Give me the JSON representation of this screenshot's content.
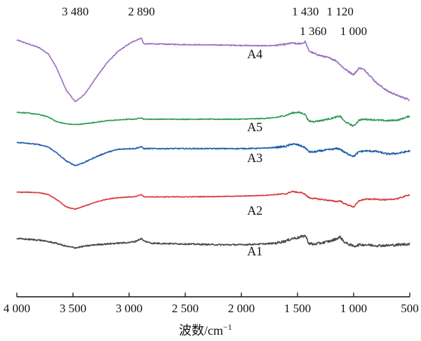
{
  "chart_data": {
    "type": "line",
    "xlabel_main": "波数/cm",
    "xlabel_sup": "−1",
    "xlim": [
      4000,
      500
    ],
    "xticks": [
      {
        "value": 4000,
        "label": "4 000"
      },
      {
        "value": 3500,
        "label": "3 500"
      },
      {
        "value": 3000,
        "label": "3 000"
      },
      {
        "value": 2500,
        "label": "2 500"
      },
      {
        "value": 2000,
        "label": "2 000"
      },
      {
        "value": 1500,
        "label": "1 500"
      },
      {
        "value": 1000,
        "label": "1 000"
      },
      {
        "value": 500,
        "label": "500"
      }
    ],
    "annotations": [
      {
        "label": "3 480",
        "x": 3480,
        "row": 1
      },
      {
        "label": "2 890",
        "x": 2890,
        "row": 1
      },
      {
        "label": "1 430",
        "x": 1430,
        "row": 1
      },
      {
        "label": "1 120",
        "x": 1120,
        "row": 1
      },
      {
        "label": "1 360",
        "x": 1360,
        "row": 2
      },
      {
        "label": "1 000",
        "x": 1000,
        "row": 2
      }
    ],
    "series": [
      {
        "name": "A4",
        "color": "#9b6fc0",
        "label_x": 1880,
        "label_level": 40,
        "noise": 1.2,
        "points": [
          [
            4000,
            160
          ],
          [
            3900,
            150
          ],
          [
            3800,
            140
          ],
          [
            3720,
            124
          ],
          [
            3650,
            90
          ],
          [
            3560,
            30
          ],
          [
            3480,
            0
          ],
          [
            3400,
            18
          ],
          [
            3300,
            60
          ],
          [
            3200,
            100
          ],
          [
            3100,
            130
          ],
          [
            3000,
            150
          ],
          [
            2950,
            158
          ],
          [
            2890,
            165
          ],
          [
            2870,
            150
          ],
          [
            2800,
            150
          ],
          [
            2500,
            148
          ],
          [
            2200,
            147
          ],
          [
            2000,
            146
          ],
          [
            1800,
            145
          ],
          [
            1700,
            146
          ],
          [
            1600,
            149
          ],
          [
            1550,
            152
          ],
          [
            1500,
            150
          ],
          [
            1450,
            152
          ],
          [
            1430,
            156
          ],
          [
            1400,
            132
          ],
          [
            1360,
            126
          ],
          [
            1300,
            120
          ],
          [
            1200,
            112
          ],
          [
            1150,
            105
          ],
          [
            1120,
            96
          ],
          [
            1080,
            85
          ],
          [
            1000,
            70
          ],
          [
            950,
            88
          ],
          [
            900,
            82
          ],
          [
            800,
            50
          ],
          [
            700,
            28
          ],
          [
            600,
            15
          ],
          [
            500,
            5
          ]
        ]
      },
      {
        "name": "A5",
        "color": "#2e9c5a",
        "label_x": 1880,
        "label_level": -5,
        "noise": 1.1,
        "points": [
          [
            4000,
            18
          ],
          [
            3900,
            16
          ],
          [
            3800,
            12
          ],
          [
            3720,
            6
          ],
          [
            3650,
            -6
          ],
          [
            3560,
            -12
          ],
          [
            3480,
            -14
          ],
          [
            3400,
            -12
          ],
          [
            3300,
            -8
          ],
          [
            3200,
            -4
          ],
          [
            3100,
            -2
          ],
          [
            3000,
            0
          ],
          [
            2950,
            0
          ],
          [
            2890,
            4
          ],
          [
            2870,
            0
          ],
          [
            2800,
            0
          ],
          [
            2500,
            0
          ],
          [
            2200,
            0
          ],
          [
            2000,
            0
          ],
          [
            1800,
            2
          ],
          [
            1700,
            4
          ],
          [
            1600,
            10
          ],
          [
            1550,
            16
          ],
          [
            1500,
            18
          ],
          [
            1450,
            15
          ],
          [
            1430,
            12
          ],
          [
            1400,
            -5
          ],
          [
            1360,
            -6
          ],
          [
            1300,
            -4
          ],
          [
            1200,
            2
          ],
          [
            1150,
            6
          ],
          [
            1120,
            8
          ],
          [
            1080,
            -6
          ],
          [
            1000,
            -18
          ],
          [
            950,
            -2
          ],
          [
            900,
            0
          ],
          [
            800,
            -2
          ],
          [
            700,
            -4
          ],
          [
            600,
            -2
          ],
          [
            500,
            8
          ]
        ]
      },
      {
        "name": "A3",
        "color": "#1f5fad",
        "label_x": 1880,
        "label_level": -30,
        "noise": 1.3,
        "points": [
          [
            4000,
            20
          ],
          [
            3900,
            18
          ],
          [
            3800,
            14
          ],
          [
            3720,
            8
          ],
          [
            3650,
            -6
          ],
          [
            3560,
            -28
          ],
          [
            3480,
            -40
          ],
          [
            3400,
            -32
          ],
          [
            3300,
            -18
          ],
          [
            3200,
            -6
          ],
          [
            3100,
            2
          ],
          [
            3000,
            4
          ],
          [
            2950,
            4
          ],
          [
            2890,
            9
          ],
          [
            2870,
            4
          ],
          [
            2800,
            4
          ],
          [
            2500,
            4
          ],
          [
            2200,
            4
          ],
          [
            2000,
            4
          ],
          [
            1800,
            5
          ],
          [
            1700,
            7
          ],
          [
            1600,
            10
          ],
          [
            1550,
            16
          ],
          [
            1500,
            14
          ],
          [
            1450,
            9
          ],
          [
            1430,
            6
          ],
          [
            1400,
            -4
          ],
          [
            1360,
            -5
          ],
          [
            1300,
            -2
          ],
          [
            1200,
            2
          ],
          [
            1150,
            4
          ],
          [
            1120,
            3
          ],
          [
            1080,
            -6
          ],
          [
            1000,
            -16
          ],
          [
            950,
            -4
          ],
          [
            900,
            -2
          ],
          [
            800,
            -3
          ],
          [
            700,
            -10
          ],
          [
            600,
            -8
          ],
          [
            500,
            -2
          ]
        ]
      },
      {
        "name": "A2",
        "color": "#d93a3a",
        "label_x": 1880,
        "label_level": -20,
        "noise": 0.9,
        "points": [
          [
            4000,
            10
          ],
          [
            3900,
            10
          ],
          [
            3800,
            9
          ],
          [
            3720,
            4
          ],
          [
            3650,
            -8
          ],
          [
            3560,
            -28
          ],
          [
            3480,
            -34
          ],
          [
            3400,
            -26
          ],
          [
            3300,
            -16
          ],
          [
            3200,
            -8
          ],
          [
            3100,
            -4
          ],
          [
            3000,
            -2
          ],
          [
            2950,
            -2
          ],
          [
            2890,
            4
          ],
          [
            2870,
            -2
          ],
          [
            2800,
            -2
          ],
          [
            2500,
            -2
          ],
          [
            2200,
            -1
          ],
          [
            2000,
            0
          ],
          [
            1800,
            2
          ],
          [
            1700,
            4
          ],
          [
            1600,
            6
          ],
          [
            1550,
            12
          ],
          [
            1500,
            10
          ],
          [
            1450,
            8
          ],
          [
            1430,
            4
          ],
          [
            1400,
            -4
          ],
          [
            1360,
            -6
          ],
          [
            1300,
            -8
          ],
          [
            1200,
            -12
          ],
          [
            1150,
            -14
          ],
          [
            1120,
            -12
          ],
          [
            1080,
            -20
          ],
          [
            1000,
            -28
          ],
          [
            950,
            -12
          ],
          [
            900,
            -8
          ],
          [
            800,
            -8
          ],
          [
            700,
            -10
          ],
          [
            600,
            -6
          ],
          [
            500,
            4
          ]
        ]
      },
      {
        "name": "A1",
        "color": "#4a4a4a",
        "label_x": 1880,
        "label_level": -28,
        "noise": 1.8,
        "points": [
          [
            4000,
            10
          ],
          [
            3900,
            8
          ],
          [
            3800,
            6
          ],
          [
            3720,
            2
          ],
          [
            3650,
            -2
          ],
          [
            3560,
            -10
          ],
          [
            3480,
            -14
          ],
          [
            3400,
            -10
          ],
          [
            3300,
            -6
          ],
          [
            3200,
            -4
          ],
          [
            3100,
            -2
          ],
          [
            3000,
            0
          ],
          [
            2950,
            2
          ],
          [
            2890,
            10
          ],
          [
            2870,
            4
          ],
          [
            2800,
            -2
          ],
          [
            2500,
            -4
          ],
          [
            2200,
            -6
          ],
          [
            2000,
            -6
          ],
          [
            1800,
            -4
          ],
          [
            1700,
            -2
          ],
          [
            1600,
            4
          ],
          [
            1550,
            10
          ],
          [
            1500,
            12
          ],
          [
            1450,
            16
          ],
          [
            1430,
            18
          ],
          [
            1400,
            -2
          ],
          [
            1360,
            -5
          ],
          [
            1300,
            -2
          ],
          [
            1200,
            4
          ],
          [
            1150,
            10
          ],
          [
            1120,
            14
          ],
          [
            1080,
            0
          ],
          [
            1000,
            -10
          ],
          [
            950,
            -6
          ],
          [
            900,
            -6
          ],
          [
            800,
            -8
          ],
          [
            700,
            -8
          ],
          [
            600,
            -6
          ],
          [
            500,
            -4
          ]
        ]
      }
    ]
  }
}
